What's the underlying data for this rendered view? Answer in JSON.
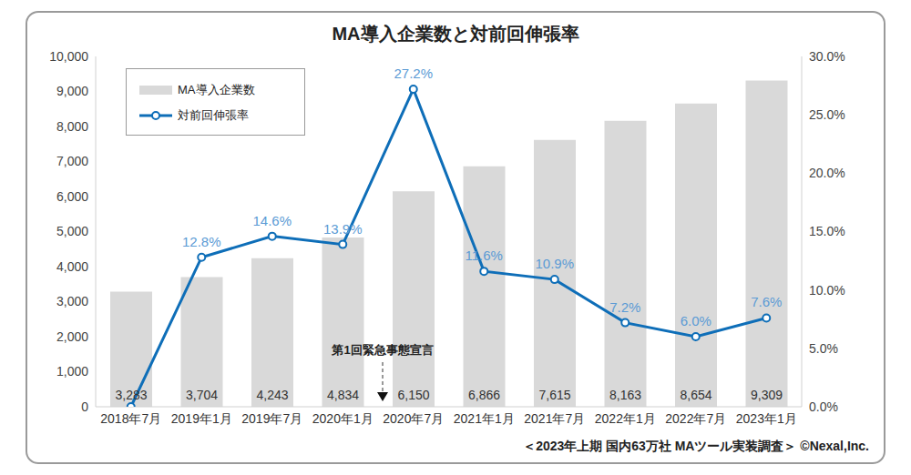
{
  "chart_data": {
    "type": "bar",
    "title": "MA導入企業数と対前回伸張率",
    "categories": [
      "2018年7月",
      "2019年1月",
      "2019年7月",
      "2020年1月",
      "2020年7月",
      "2021年1月",
      "2021年7月",
      "2022年1月",
      "2022年7月",
      "2023年1月"
    ],
    "series": [
      {
        "name": "MA導入企業数",
        "type": "bar",
        "color": "#d9d9d9",
        "values": [
          3283,
          3704,
          4243,
          4834,
          6150,
          6866,
          7615,
          8163,
          8654,
          9309
        ],
        "value_labels": [
          "3,283",
          "3,704",
          "4,243",
          "4,834",
          "6,150",
          "6,866",
          "7,615",
          "8,163",
          "8,654",
          "9,309"
        ]
      },
      {
        "name": "対前回伸張率",
        "type": "line",
        "axis": "y2",
        "color": "#0e6eb8",
        "marker": "circle",
        "values": [
          0,
          12.8,
          14.6,
          13.9,
          27.2,
          11.6,
          10.9,
          7.2,
          6.0,
          7.6
        ],
        "value_labels": [
          null,
          "12.8%",
          "14.6%",
          "13.9%",
          "27.2%",
          "11.6%",
          "10.9%",
          "7.2%",
          "6.0%",
          "7.6%"
        ]
      }
    ],
    "ylim": [
      0,
      10000
    ],
    "yticks": [
      0,
      {
        "value": 1000,
        "label": "1,000"
      },
      {
        "value": 2000,
        "label": "2,000"
      },
      {
        "value": 3000,
        "label": "3,000"
      },
      {
        "value": 4000,
        "label": "4,000"
      },
      {
        "value": 5000,
        "label": "5,000"
      },
      {
        "value": 6000,
        "label": "6,000"
      },
      {
        "value": 7000,
        "label": "7,000"
      },
      {
        "value": 8000,
        "label": "8,000"
      },
      {
        "value": 9000,
        "label": "9,000"
      },
      {
        "value": 10000,
        "label": "10,000"
      }
    ],
    "y2lim": [
      0,
      30
    ],
    "y2ticks": [
      {
        "value": 0,
        "label": "0.0%"
      },
      {
        "value": 5,
        "label": "5.0%"
      },
      {
        "value": 10,
        "label": "10.0%"
      },
      {
        "value": 15,
        "label": "15.0%"
      },
      {
        "value": 20,
        "label": "20.0%"
      },
      {
        "value": 25,
        "label": "25.0%"
      },
      {
        "value": 30,
        "label": "30.0%"
      }
    ],
    "grid": false,
    "data_labels": true,
    "legend": "top-left",
    "annotations": [
      "第1回緊急事態宣言",
      "＜2023年上期 国内63万社 MAツール実装調査＞ ©Nexal,Inc."
    ]
  }
}
